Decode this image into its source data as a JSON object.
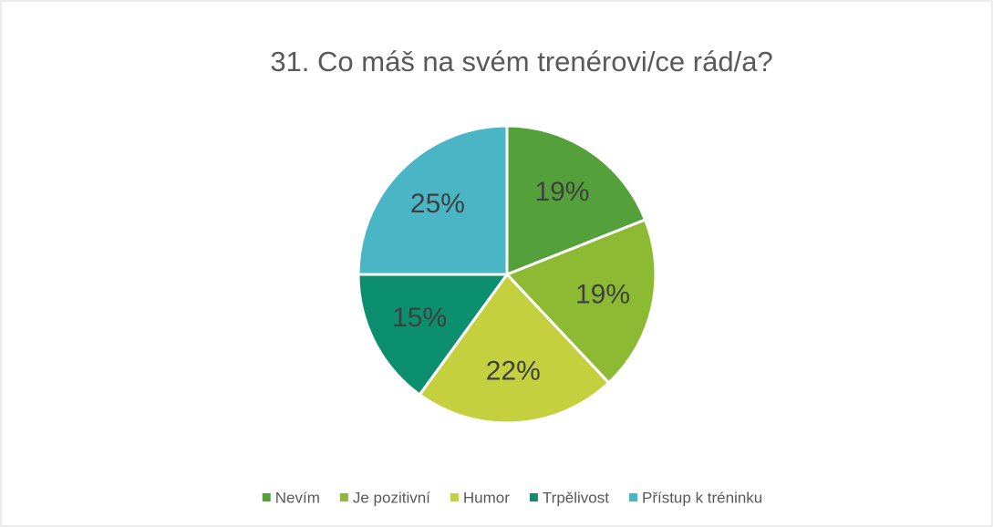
{
  "chart_data": {
    "type": "pie",
    "title": "31. Co máš na svém trenérovi/ce rád/a?",
    "categories": [
      "Nevím",
      "Je pozitivní",
      "Humor",
      "Trpělivost",
      "Přístup k tréninku"
    ],
    "values": [
      19,
      19,
      22,
      15,
      25
    ],
    "value_labels": [
      "19%",
      "19%",
      "22%",
      "15%",
      "25%"
    ],
    "colors": [
      "#54a03a",
      "#8cbb33",
      "#c4d03e",
      "#0b8f6e",
      "#4ab5c4"
    ],
    "legend": "bottom"
  }
}
